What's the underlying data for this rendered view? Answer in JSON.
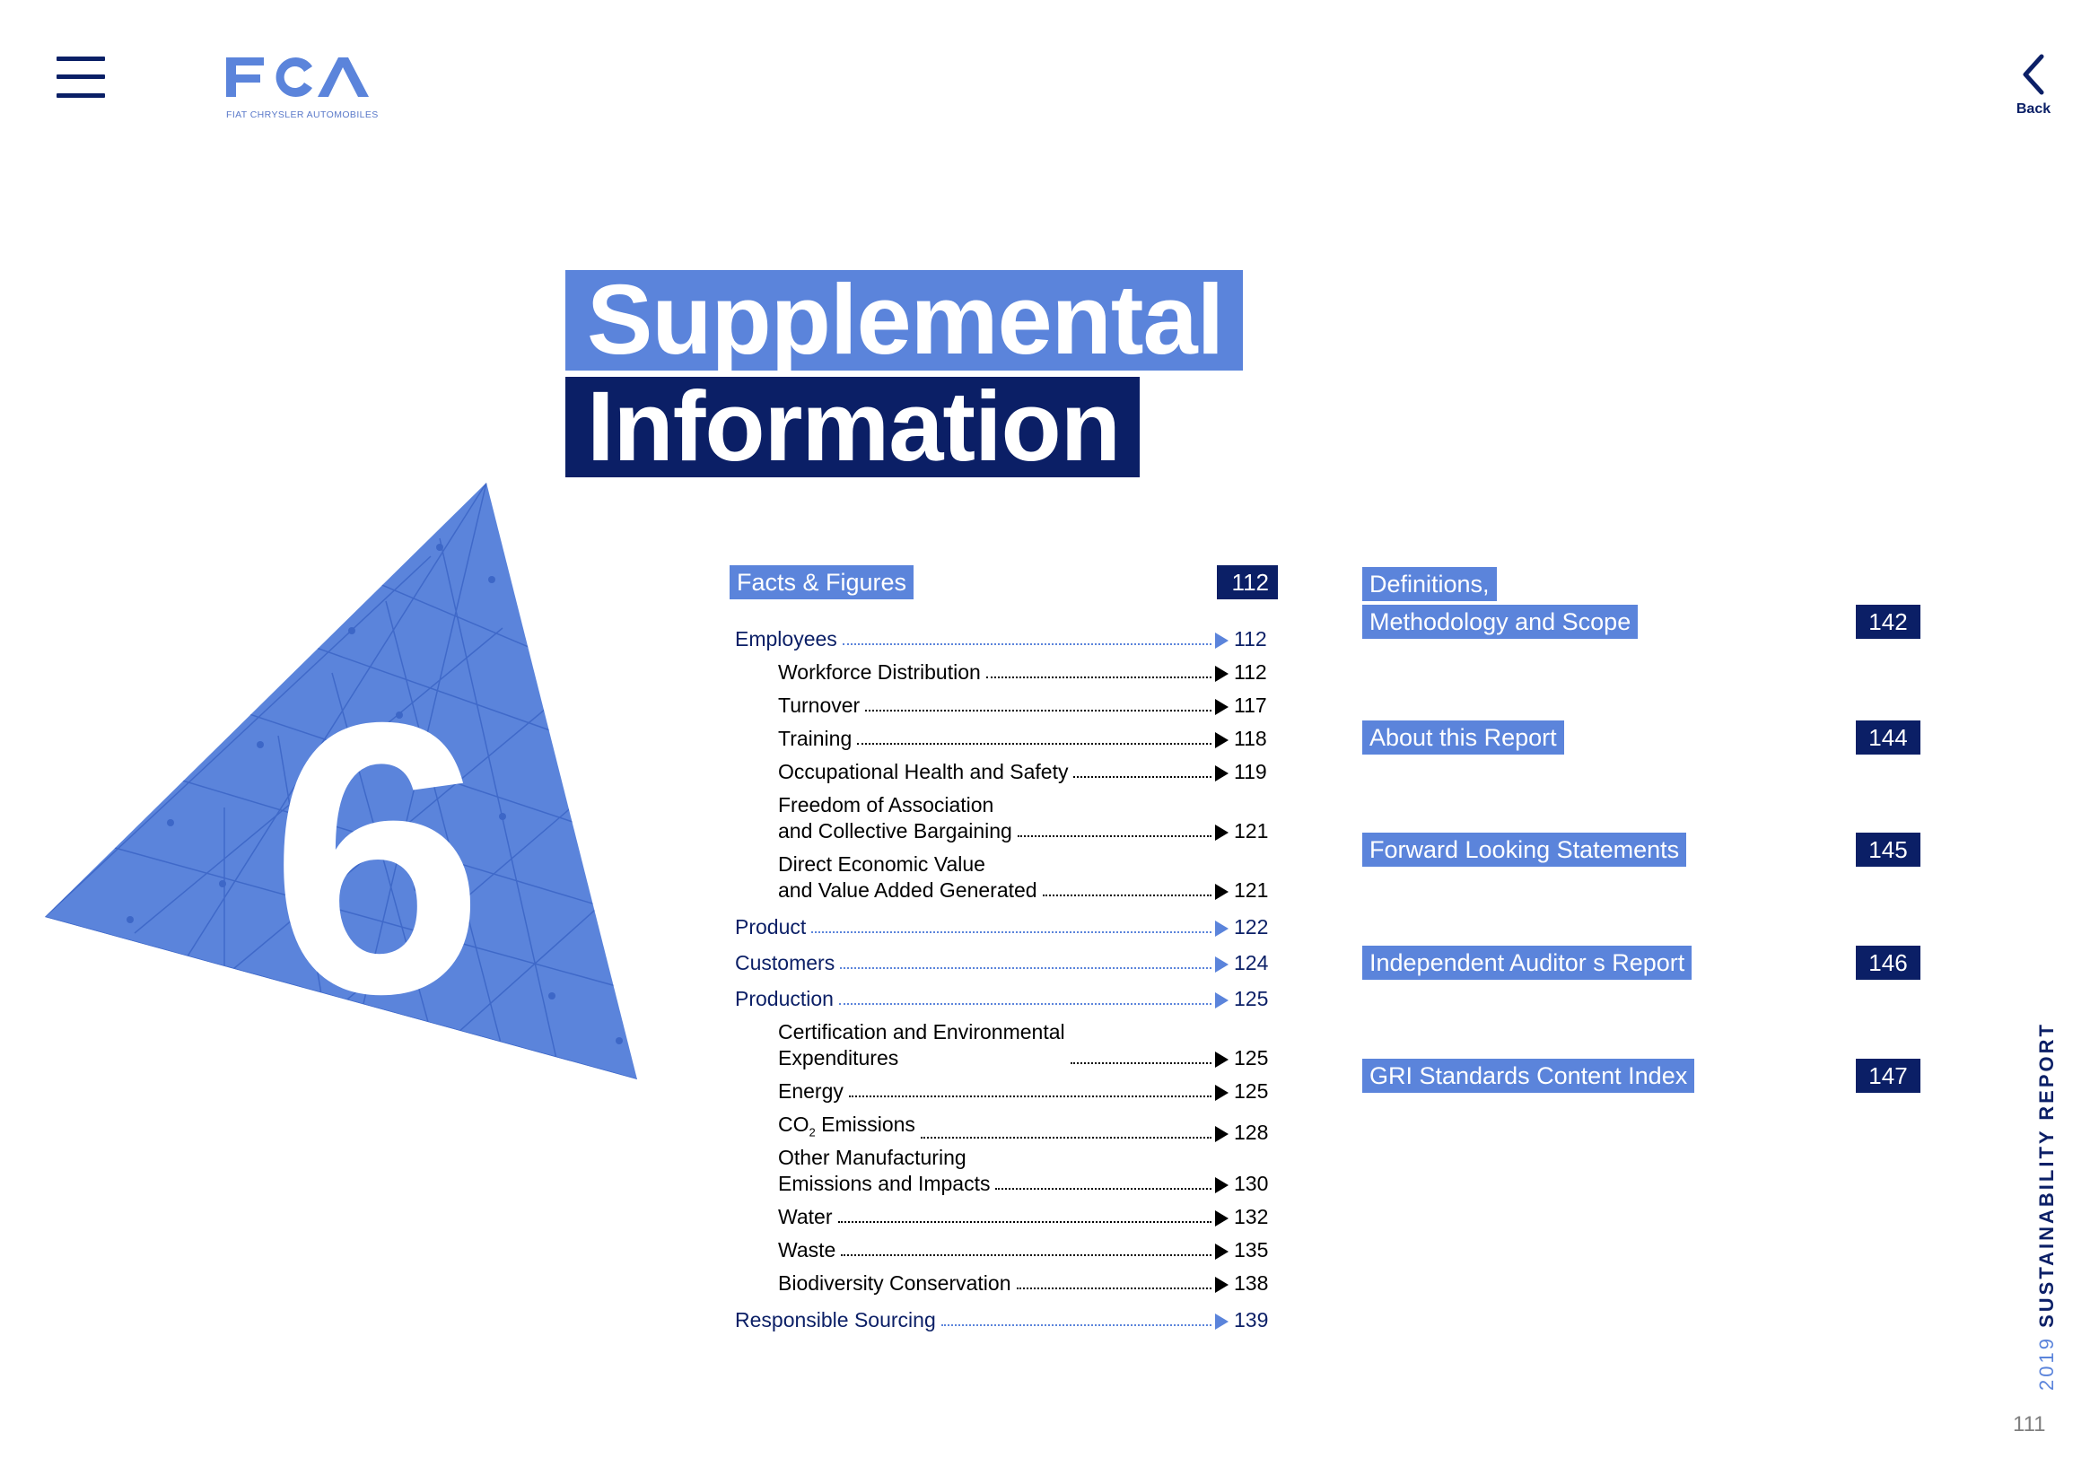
{
  "header": {
    "logo_text": "FCA",
    "logo_subtext": "FIAT CHRYSLER AUTOMOBILES",
    "back_label": "Back",
    "menu_icon": "hamburger-menu-icon",
    "back_icon": "chevron-left-icon"
  },
  "title": {
    "line1": "Supplemental",
    "line2": "Information"
  },
  "chapter_number": "6",
  "toc_left": {
    "section_title": "Facts & Figures",
    "section_page": "112",
    "items": [
      {
        "label": "Employees",
        "page": "112",
        "level": "main"
      },
      {
        "label": "Workforce Distribution",
        "page": "112",
        "level": "sub"
      },
      {
        "label": "Turnover",
        "page": "117",
        "level": "sub"
      },
      {
        "label": "Training",
        "page": "118",
        "level": "sub"
      },
      {
        "label": "Occupational Health and Safety",
        "page": "119",
        "level": "sub"
      },
      {
        "label_line1": "Freedom of Association",
        "label_line2": "and Collective Bargaining",
        "page": "121",
        "level": "sub"
      },
      {
        "label_line1": "Direct Economic Value",
        "label_line2": "and Value Added Generated",
        "page": "121",
        "level": "sub"
      },
      {
        "label": "Product",
        "page": "122",
        "level": "main"
      },
      {
        "label": "Customers",
        "page": "124",
        "level": "main"
      },
      {
        "label": "Production",
        "page": "125",
        "level": "main"
      },
      {
        "label_line1": "Certification and Environmental",
        "label_line2": "Expenditures",
        "page": "125",
        "level": "sub"
      },
      {
        "label": "Energy",
        "page": "125",
        "level": "sub"
      },
      {
        "label": "CO",
        "label_sub": "2",
        "label_rest": " Emissions",
        "page": "128",
        "level": "sub"
      },
      {
        "label_line1": "Other Manufacturing",
        "label_line2": "Emissions and Impacts",
        "page": "130",
        "level": "sub"
      },
      {
        "label": "Water",
        "page": "132",
        "level": "sub"
      },
      {
        "label": "Waste",
        "page": "135",
        "level": "sub"
      },
      {
        "label": "Biodiversity Conservation",
        "page": "138",
        "level": "sub"
      },
      {
        "label": "Responsible Sourcing",
        "page": "139",
        "level": "main"
      }
    ]
  },
  "toc_right": [
    {
      "label_line1": "Definitions,",
      "label_line2": "Methodology and Scope",
      "page": "142"
    },
    {
      "label": "About this Report",
      "page": "144"
    },
    {
      "label": "Forward Looking Statements",
      "page": "145"
    },
    {
      "label": "Independent Auditor s Report",
      "page": "146"
    },
    {
      "label": "GRI Standards Content Index",
      "page": "147"
    }
  ],
  "side_text": {
    "year": "2019",
    "report": "SUSTAINABILITY REPORT"
  },
  "page_number": "111",
  "colors": {
    "light_blue": "#5b84db",
    "navy": "#0b1f66"
  }
}
